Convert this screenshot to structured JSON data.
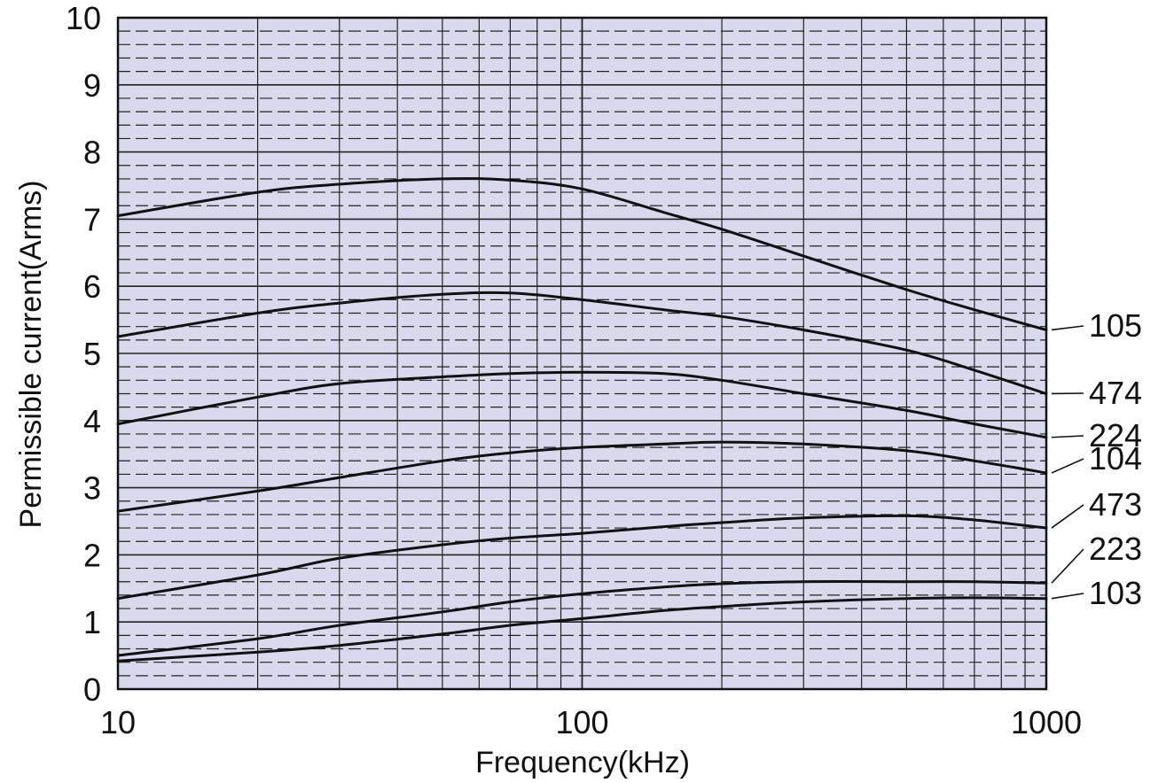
{
  "chart_data": {
    "type": "line",
    "title": "",
    "xlabel": "Frequency(kHz)",
    "ylabel": "Permissible current(Arms)",
    "x_scale": "log",
    "xlim": [
      10,
      1000
    ],
    "ylim": [
      0,
      10
    ],
    "x_ticks": [
      "10",
      "100",
      "1000"
    ],
    "y_ticks": [
      "0",
      "1",
      "2",
      "3",
      "4",
      "5",
      "6",
      "7",
      "8",
      "9",
      "10"
    ],
    "grid": true,
    "colors": {
      "plot_background": "#d9d9ee",
      "grid_line": "#222222",
      "curve": "#111111"
    },
    "series": [
      {
        "name": "105",
        "x": [
          10,
          20,
          30,
          50,
          70,
          100,
          150,
          200,
          300,
          500,
          700,
          1000
        ],
        "y": [
          7.05,
          7.4,
          7.52,
          7.6,
          7.58,
          7.45,
          7.1,
          6.85,
          6.45,
          5.95,
          5.65,
          5.35
        ]
      },
      {
        "name": "474",
        "x": [
          10,
          20,
          30,
          50,
          70,
          100,
          150,
          200,
          300,
          500,
          700,
          1000
        ],
        "y": [
          5.25,
          5.6,
          5.75,
          5.88,
          5.9,
          5.8,
          5.65,
          5.55,
          5.35,
          5.05,
          4.75,
          4.4
        ]
      },
      {
        "name": "224",
        "x": [
          10,
          20,
          30,
          50,
          70,
          100,
          150,
          200,
          300,
          500,
          700,
          1000
        ],
        "y": [
          3.95,
          4.35,
          4.55,
          4.65,
          4.7,
          4.72,
          4.7,
          4.6,
          4.4,
          4.15,
          3.95,
          3.75
        ]
      },
      {
        "name": "104",
        "x": [
          10,
          20,
          30,
          50,
          70,
          100,
          150,
          200,
          300,
          500,
          700,
          1000
        ],
        "y": [
          2.65,
          2.95,
          3.15,
          3.4,
          3.52,
          3.6,
          3.65,
          3.68,
          3.65,
          3.55,
          3.4,
          3.22
        ]
      },
      {
        "name": "473",
        "x": [
          10,
          20,
          30,
          50,
          70,
          100,
          150,
          200,
          300,
          500,
          700,
          1000
        ],
        "y": [
          1.35,
          1.7,
          1.95,
          2.15,
          2.25,
          2.32,
          2.42,
          2.48,
          2.55,
          2.58,
          2.52,
          2.4
        ]
      },
      {
        "name": "223",
        "x": [
          10,
          20,
          30,
          50,
          70,
          100,
          150,
          200,
          300,
          500,
          700,
          1000
        ],
        "y": [
          0.5,
          0.75,
          0.95,
          1.15,
          1.3,
          1.42,
          1.52,
          1.57,
          1.6,
          1.6,
          1.6,
          1.58
        ]
      },
      {
        "name": "103",
        "x": [
          10,
          20,
          30,
          50,
          70,
          100,
          150,
          200,
          300,
          500,
          700,
          1000
        ],
        "y": [
          0.42,
          0.55,
          0.65,
          0.82,
          0.95,
          1.05,
          1.17,
          1.23,
          1.3,
          1.35,
          1.36,
          1.35
        ]
      }
    ]
  }
}
